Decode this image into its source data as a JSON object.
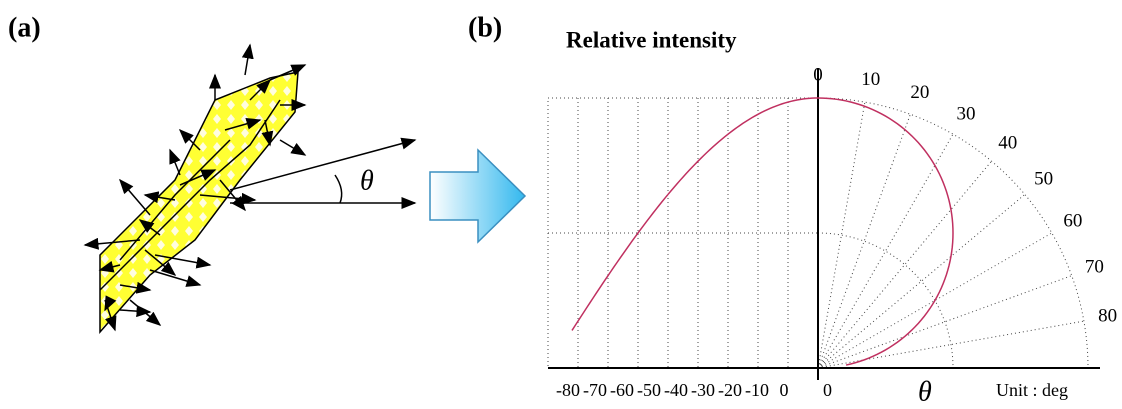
{
  "panels": {
    "a": {
      "label": "(a)",
      "theta": "θ"
    },
    "b": {
      "label": "(b)",
      "title": "Relative intensity",
      "angle_labels": [
        "0",
        "10",
        "20",
        "30",
        "40",
        "50",
        "60",
        "70",
        "80"
      ],
      "x_labels": [
        "-80",
        "-70",
        "-60",
        "-50",
        "-40",
        "-30",
        "-20",
        "-10",
        "0"
      ],
      "origin_label": "0",
      "theta": "θ",
      "unit": "Unit : deg"
    }
  }
}
